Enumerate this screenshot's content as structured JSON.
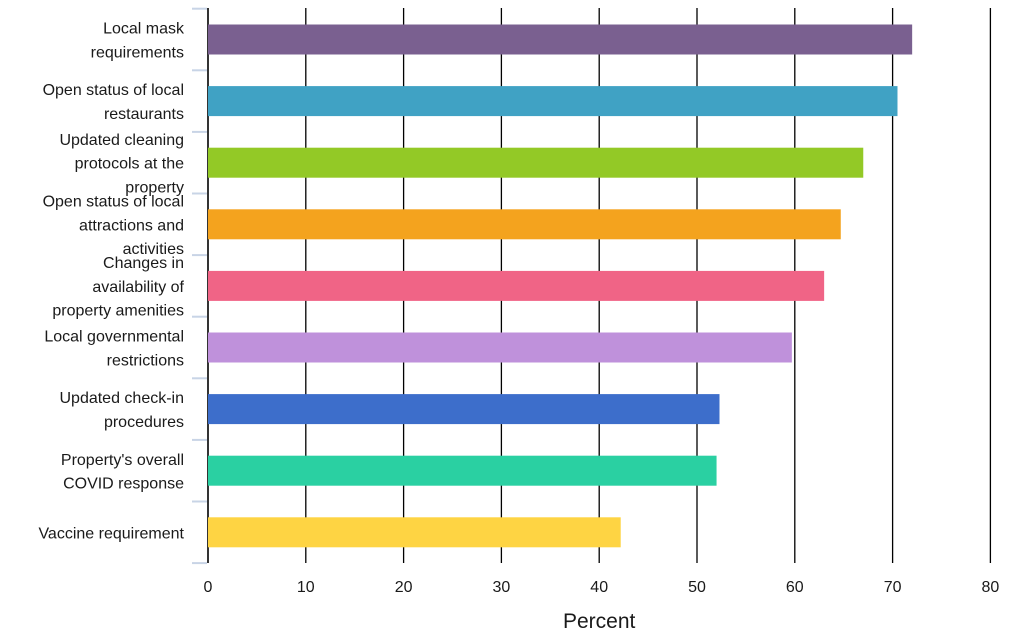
{
  "chart_data": {
    "type": "bar",
    "orientation": "horizontal",
    "title": "",
    "xlabel": "Percent",
    "ylabel": "",
    "xlim": [
      0,
      80
    ],
    "xticks": [
      0,
      10,
      20,
      30,
      40,
      50,
      60,
      70,
      80
    ],
    "grid": "vertical",
    "legend": "none",
    "categories": [
      "Local mask requirements",
      "Open status of local restaurants",
      "Updated cleaning protocols at the property",
      "Open status of local attractions and activities",
      "Changes in availability of property amenities",
      "Local governmental restrictions",
      "Updated check-in procedures",
      "Property's overall COVID response",
      "Vaccine requirement"
    ],
    "values": [
      72,
      70.5,
      67,
      64.7,
      63,
      59.7,
      52.3,
      52,
      42.2
    ],
    "colors": [
      "#7a6090",
      "#40a2c4",
      "#93c926",
      "#f4a31e",
      "#f06486",
      "#bf91db",
      "#3d6ecb",
      "#2ad0a2",
      "#fed443"
    ]
  }
}
